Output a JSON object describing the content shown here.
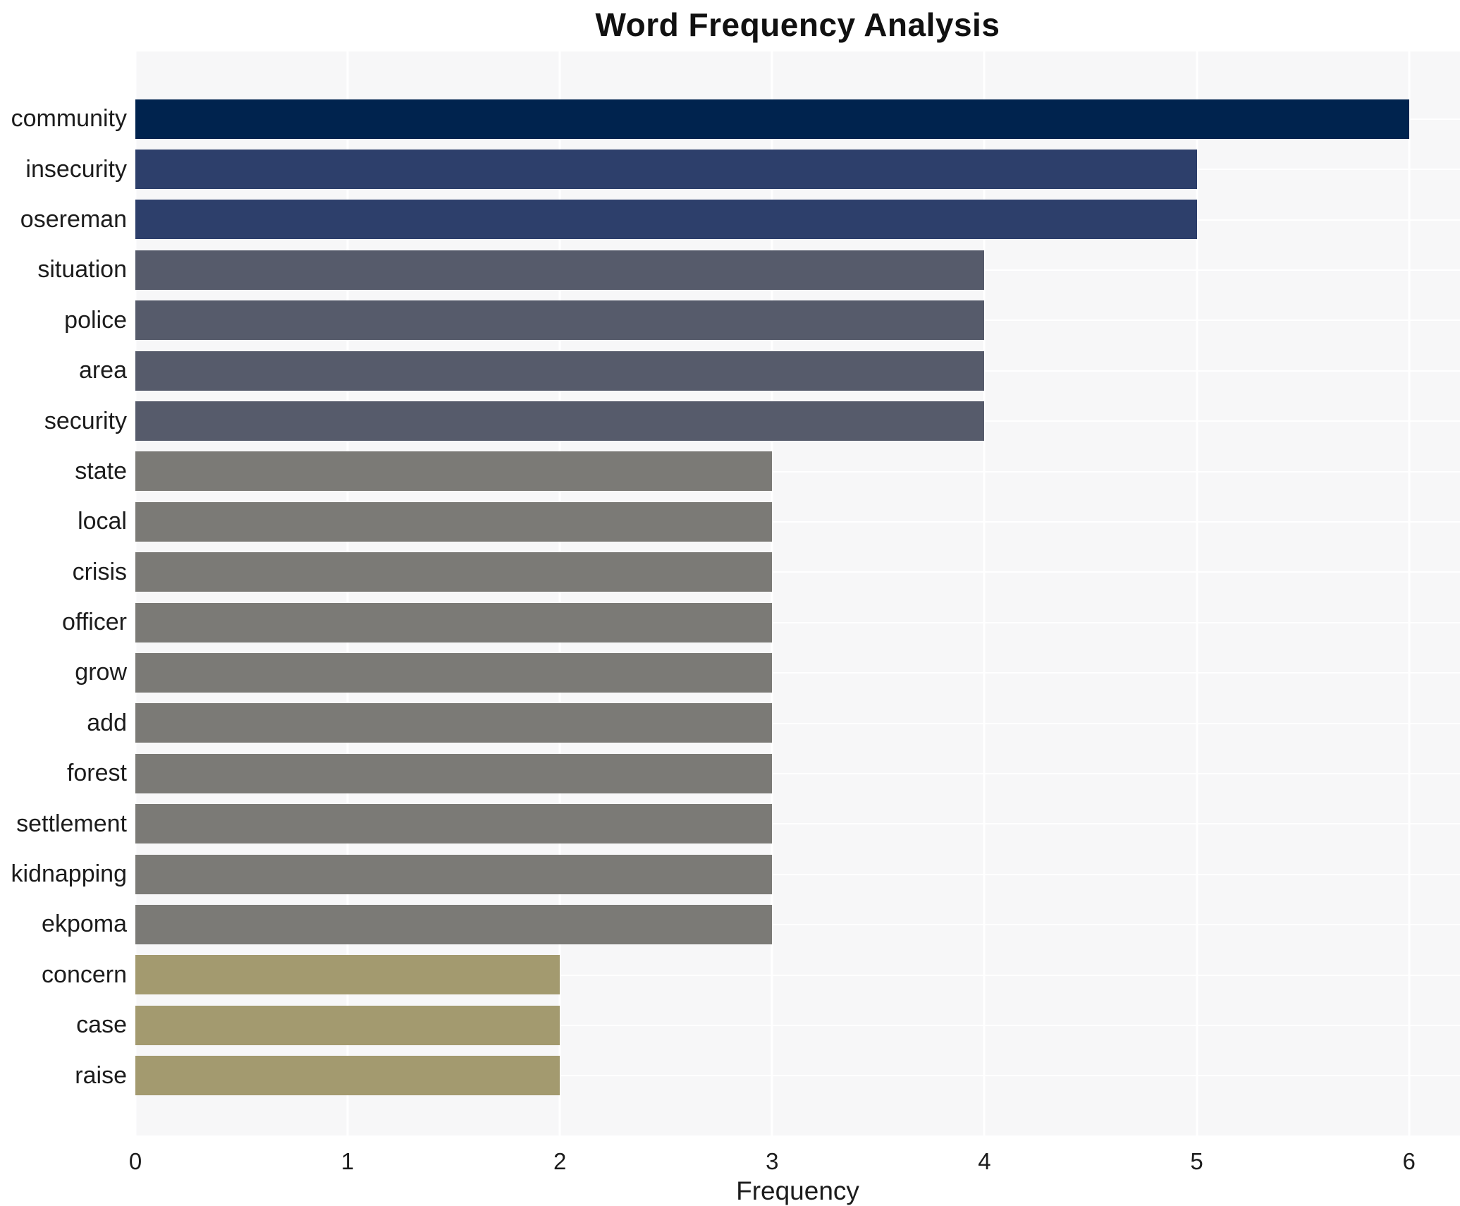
{
  "chart_data": {
    "type": "bar",
    "orientation": "horizontal",
    "title": "Word Frequency Analysis",
    "xlabel": "Frequency",
    "ylabel": "",
    "categories": [
      "community",
      "insecurity",
      "osereman",
      "situation",
      "police",
      "area",
      "security",
      "state",
      "local",
      "crisis",
      "officer",
      "grow",
      "add",
      "forest",
      "settlement",
      "kidnapping",
      "ekpoma",
      "concern",
      "case",
      "raise"
    ],
    "values": [
      6,
      5,
      5,
      4,
      4,
      4,
      4,
      3,
      3,
      3,
      3,
      3,
      3,
      3,
      3,
      3,
      3,
      2,
      2,
      2
    ],
    "bar_colors": [
      "#00234e",
      "#2d3f6b",
      "#2d3f6b",
      "#565b6b",
      "#565b6b",
      "#565b6b",
      "#565b6b",
      "#7b7a76",
      "#7b7a76",
      "#7b7a76",
      "#7b7a76",
      "#7b7a76",
      "#7b7a76",
      "#7b7a76",
      "#7b7a76",
      "#7b7a76",
      "#7b7a76",
      "#a39a6f",
      "#a39a6f",
      "#a39a6f"
    ],
    "colors_by_value": {
      "6": "#00234e",
      "5": "#2d3f6b",
      "4": "#565b6b",
      "3": "#7b7a76",
      "2": "#a39a6f"
    },
    "colormap": "cividis",
    "xticks": [
      0,
      1,
      2,
      3,
      4,
      5,
      6
    ],
    "xlim": [
      0,
      6.24
    ],
    "grid": true,
    "legend": false,
    "plot_bg_color": "#f7f7f8",
    "grid_color": "#ffffff",
    "text_color": "#1c1c1c",
    "title_color": "#111111"
  }
}
